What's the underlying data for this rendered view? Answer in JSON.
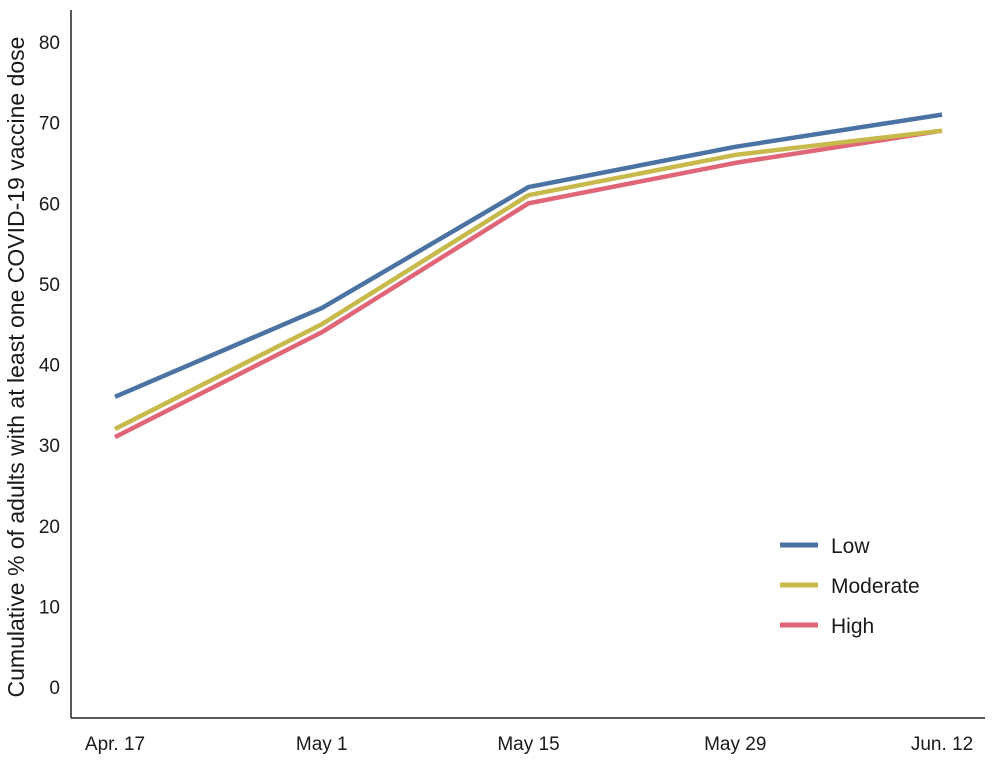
{
  "chart_data": {
    "type": "line",
    "title": "",
    "xlabel": "",
    "ylabel": "Cumulative % of adults with at least one COVID-19 vaccine dose",
    "categories": [
      "Apr. 17",
      "May 1",
      "May 15",
      "May 29",
      "Jun. 12"
    ],
    "ylim": [
      -3,
      85
    ],
    "yticks": [
      0,
      10,
      20,
      30,
      40,
      50,
      60,
      70,
      80
    ],
    "grid": false,
    "legend_position": "bottom-right",
    "series": [
      {
        "name": "Low",
        "color": "#4a72a3",
        "values": [
          36,
          47,
          62,
          67,
          71
        ]
      },
      {
        "name": "Moderate",
        "color": "#c8b94b",
        "values": [
          32,
          45,
          61,
          66,
          69
        ]
      },
      {
        "name": "High",
        "color": "#e06677",
        "values": [
          31,
          44,
          60,
          65,
          69
        ]
      }
    ]
  }
}
